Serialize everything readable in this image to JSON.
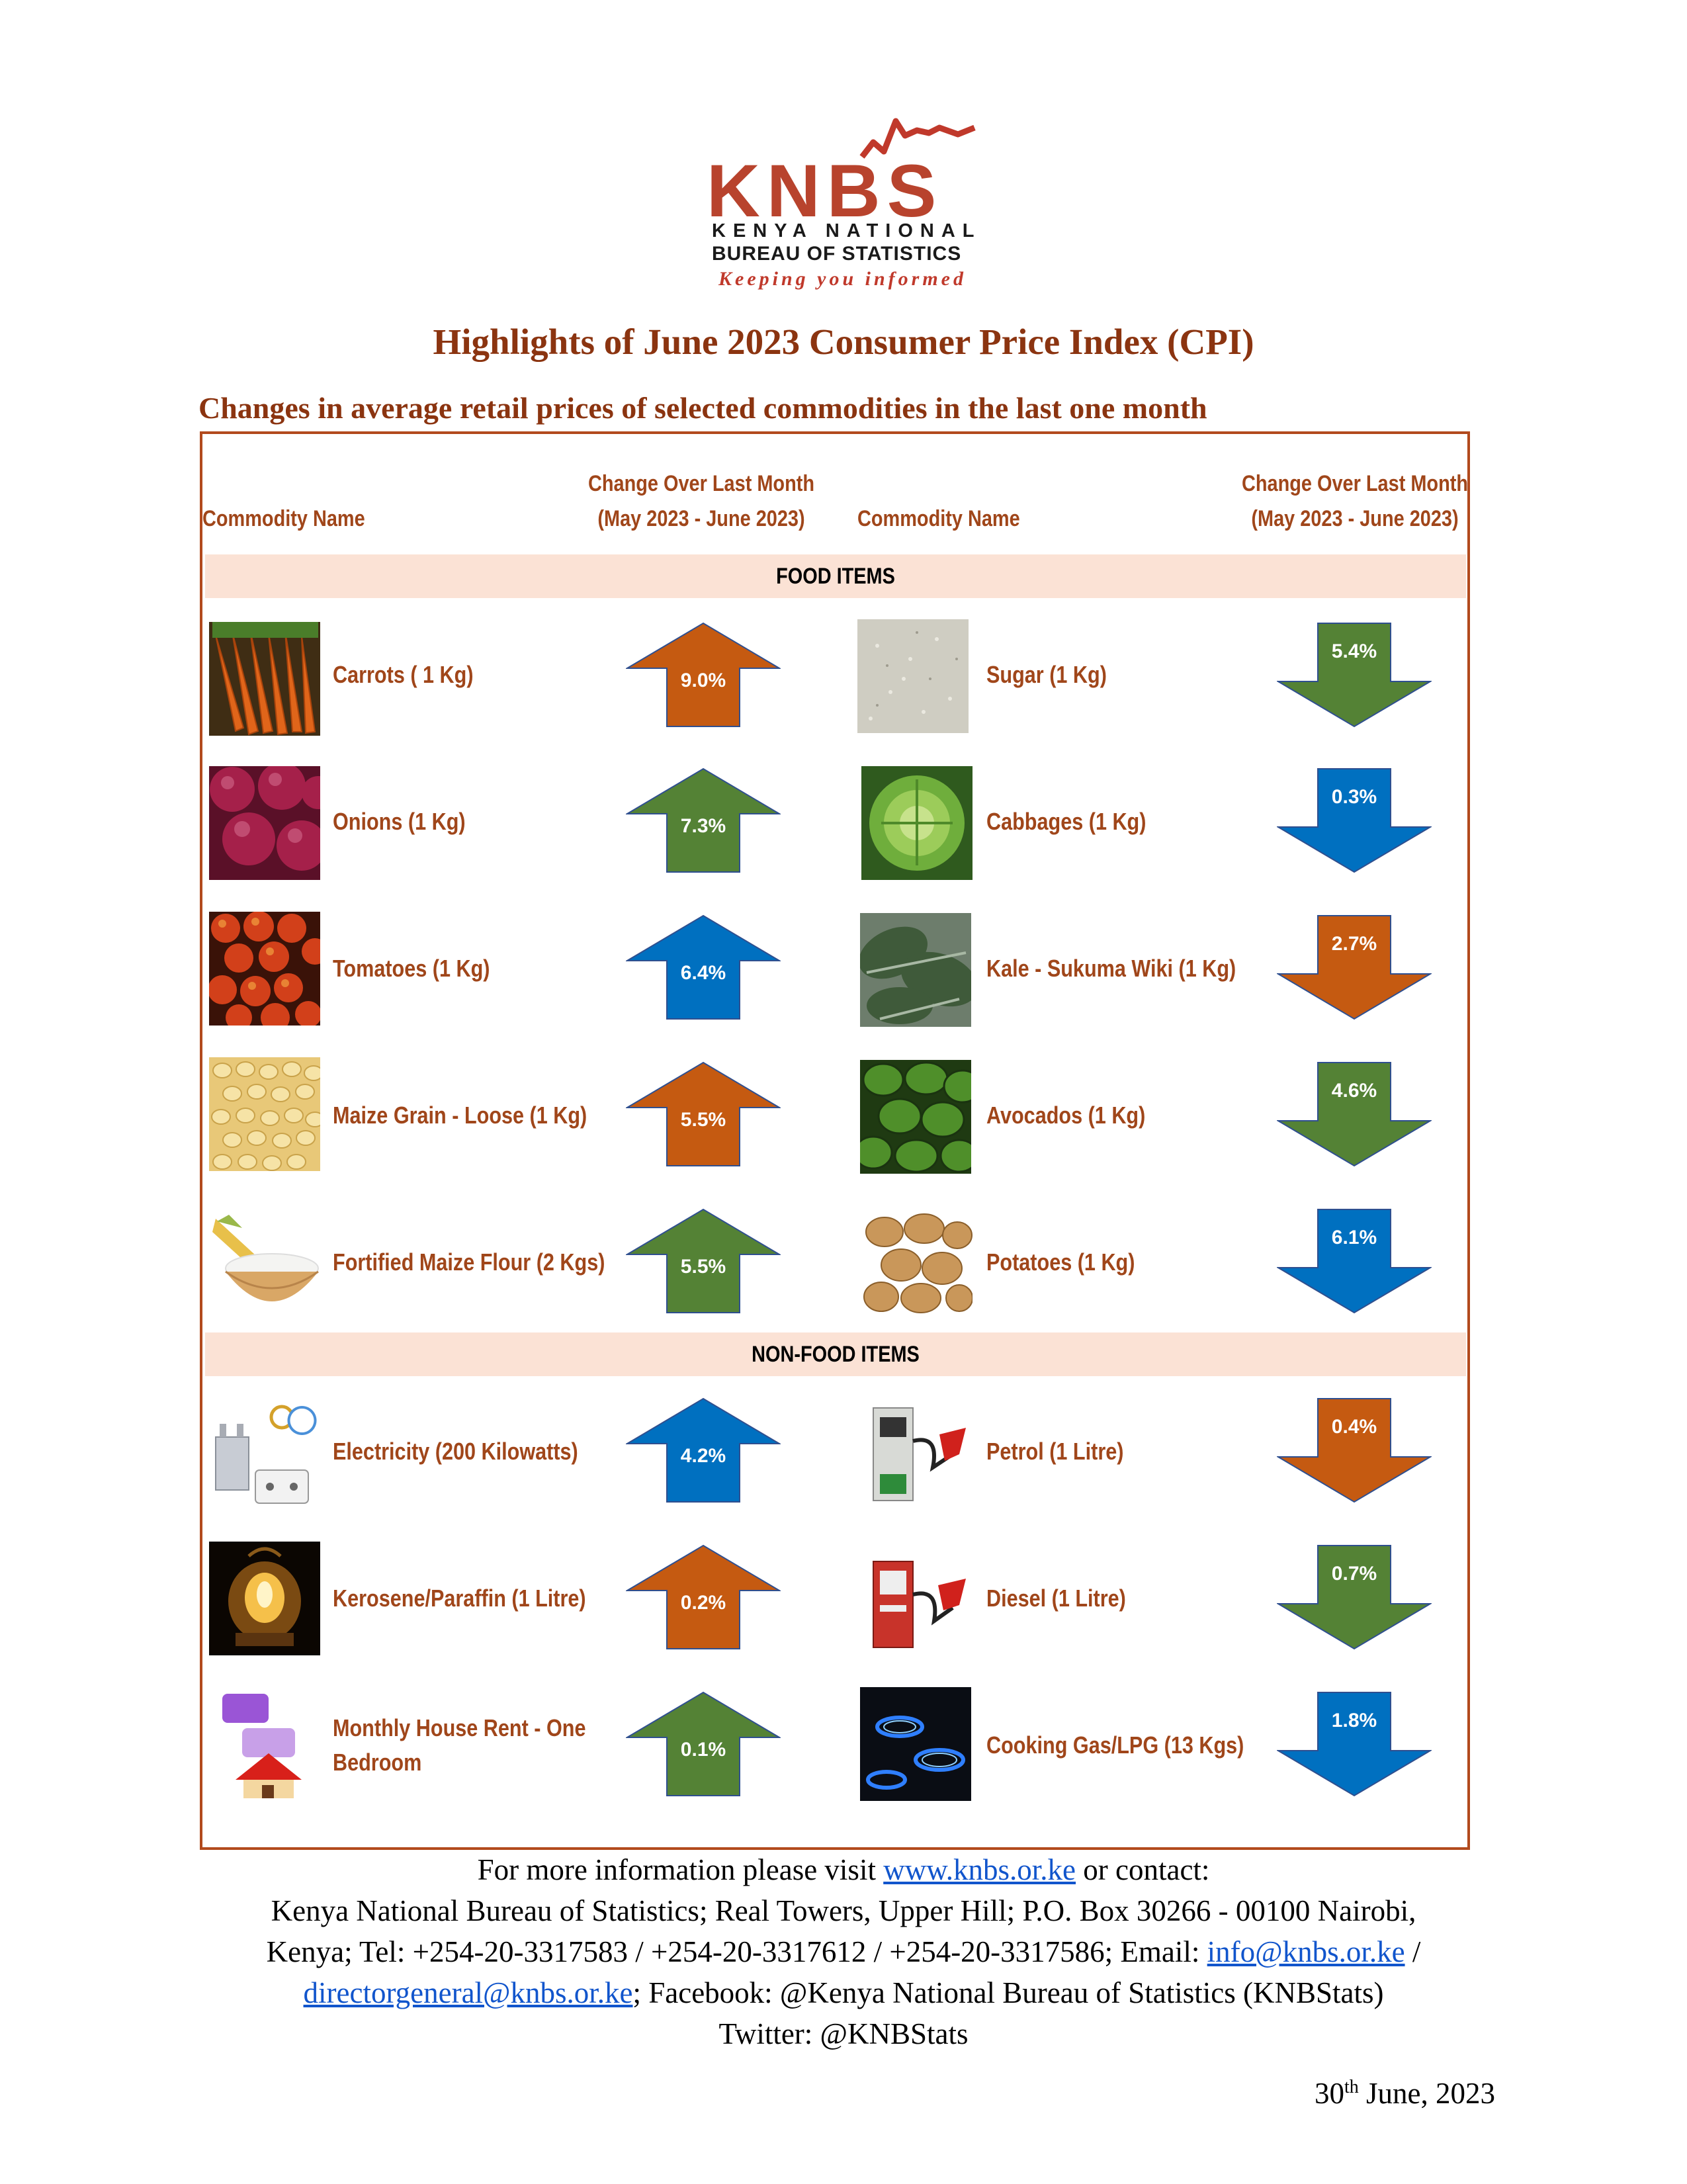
{
  "logo": {
    "wordmark": "KNBS",
    "line1": "KENYA NATIONAL",
    "line2": "BUREAU OF STATISTICS",
    "tagline": "Keeping you informed"
  },
  "title": "Highlights of June 2023 Consumer Price Index (CPI)",
  "subtitle": "Changes in average retail prices of selected commodities in the last one month",
  "table_header": {
    "commodity_name": "Commodity Name",
    "change_line1": "Change Over Last Month",
    "change_line2": "(May 2023 - June 2023)"
  },
  "sections": {
    "food": "FOOD ITEMS",
    "nonfood": "NON-FOOD ITEMS"
  },
  "items": [
    {
      "name": "Carrots ( 1 Kg)",
      "change": "9.0%",
      "direction": "up",
      "color": "#c55a11",
      "icon": "carrots-photo"
    },
    {
      "name": "Sugar (1 Kg)",
      "change": "5.4%",
      "direction": "down",
      "color": "#548235",
      "icon": "sugar-photo"
    },
    {
      "name": "Onions (1 Kg)",
      "change": "7.3%",
      "direction": "up",
      "color": "#548235",
      "icon": "onions-photo"
    },
    {
      "name": "Cabbages (1 Kg)",
      "change": "0.3%",
      "direction": "down",
      "color": "#0070c0",
      "icon": "cabbage-photo"
    },
    {
      "name": "Tomatoes (1 Kg)",
      "change": "6.4%",
      "direction": "up",
      "color": "#0070c0",
      "icon": "tomatoes-photo"
    },
    {
      "name": "Kale - Sukuma Wiki (1 Kg)",
      "change": "2.7%",
      "direction": "down",
      "color": "#c55a11",
      "icon": "kale-photo"
    },
    {
      "name": "Maize Grain - Loose (1 Kg)",
      "change": "5.5%",
      "direction": "up",
      "color": "#c55a11",
      "icon": "maize-grain-photo"
    },
    {
      "name": "Avocados (1 Kg)",
      "change": "4.6%",
      "direction": "down",
      "color": "#548235",
      "icon": "avocados-photo"
    },
    {
      "name": "Fortified Maize Flour (2 Kgs)",
      "change": "5.5%",
      "direction": "up",
      "color": "#548235",
      "icon": "maize-flour-photo"
    },
    {
      "name": "Potatoes (1 Kg)",
      "change": "6.1%",
      "direction": "down",
      "color": "#0070c0",
      "icon": "potatoes-photo"
    },
    {
      "name": "Electricity (200 Kilowatts)",
      "change": "4.2%",
      "direction": "up",
      "color": "#0070c0",
      "icon": "electricity-photo"
    },
    {
      "name": "Petrol (1 Litre)",
      "change": "0.4%",
      "direction": "down",
      "color": "#c55a11",
      "icon": "petrol-pump-photo"
    },
    {
      "name": "Kerosene/Paraffin (1 Litre)",
      "change": "0.2%",
      "direction": "up",
      "color": "#c55a11",
      "icon": "kerosene-lamp-photo"
    },
    {
      "name": "Diesel (1 Litre)",
      "change": "0.7%",
      "direction": "down",
      "color": "#548235",
      "icon": "diesel-pump-photo"
    },
    {
      "name": "Monthly House Rent - One Bedroom",
      "change": "0.1%",
      "direction": "up",
      "color": "#548235",
      "icon": "house-rent-photo"
    },
    {
      "name": "Cooking Gas/LPG (13 Kgs)",
      "change": "1.8%",
      "direction": "down",
      "color": "#0070c0",
      "icon": "gas-burner-photo"
    }
  ],
  "footer": {
    "line1_pre": "For more information please visit ",
    "website": "www.knbs.or.ke",
    "line1_post": " or contact:",
    "line2": "Kenya National Bureau of Statistics; Real Towers, Upper Hill; P.O. Box 30266 - 00100 Nairobi,",
    "line3_pre": "Kenya; Tel: +254-20-3317583 / +254-20-3317612 / +254-20-3317586; Email: ",
    "email1": "info@knbs.or.ke",
    "line3_post": " /",
    "email2": "directorgeneral@knbs.or.ke",
    "line4_post": "; Facebook: @Kenya National Bureau of Statistics (KNBStats)",
    "line5": "Twitter: @KNBStats"
  },
  "date": {
    "day": "30",
    "suffix": "th",
    "rest": " June, 2023"
  }
}
